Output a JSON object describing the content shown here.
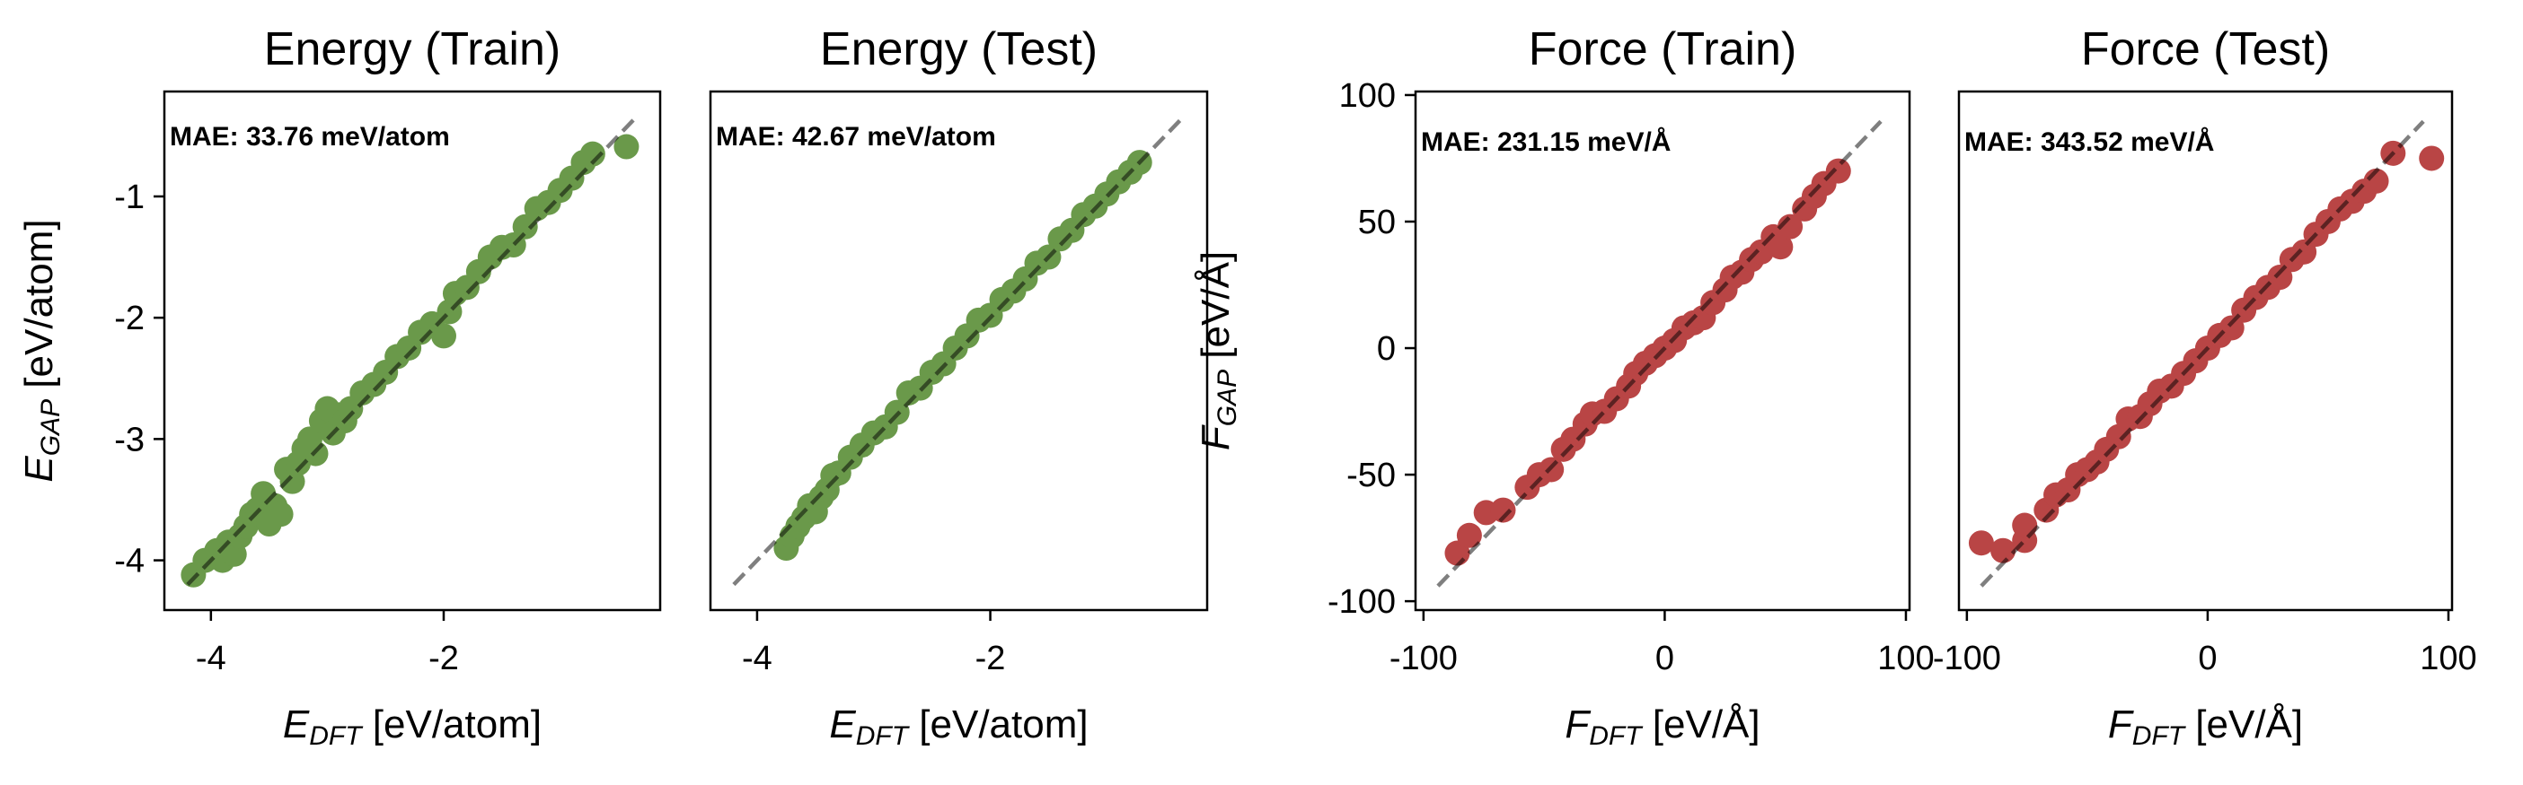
{
  "chart_data": [
    {
      "type": "scatter",
      "title": "Energy (Train)",
      "annotation": "MAE: 33.76 meV/atom",
      "xlabel": {
        "symbol": "E",
        "sub": "DFT",
        "unit": "[eV/atom]"
      },
      "ylabel": {
        "symbol": "E",
        "sub": "GAP",
        "unit": "[eV/atom]"
      },
      "xlim": [
        -4.4,
        -0.14
      ],
      "ylim": [
        -4.41,
        -0.135
      ],
      "xticks": [
        -4,
        -2
      ],
      "yticks": [
        -1,
        -2,
        -3,
        -4
      ],
      "color": "#6a994a",
      "parity_line": [
        -4.2,
        -0.37
      ],
      "points": [
        [
          -4.15,
          -4.12
        ],
        [
          -4.05,
          -4.0
        ],
        [
          -3.95,
          -3.92
        ],
        [
          -3.9,
          -4.0
        ],
        [
          -3.85,
          -3.85
        ],
        [
          -3.8,
          -3.95
        ],
        [
          -3.75,
          -3.8
        ],
        [
          -3.7,
          -3.72
        ],
        [
          -3.65,
          -3.62
        ],
        [
          -3.6,
          -3.58
        ],
        [
          -3.55,
          -3.45
        ],
        [
          -3.5,
          -3.7
        ],
        [
          -3.45,
          -3.55
        ],
        [
          -3.4,
          -3.62
        ],
        [
          -3.35,
          -3.25
        ],
        [
          -3.3,
          -3.35
        ],
        [
          -3.25,
          -3.2
        ],
        [
          -3.2,
          -3.08
        ],
        [
          -3.15,
          -3.0
        ],
        [
          -3.1,
          -3.12
        ],
        [
          -3.05,
          -2.85
        ],
        [
          -3.0,
          -2.75
        ],
        [
          -2.95,
          -2.95
        ],
        [
          -2.9,
          -2.8
        ],
        [
          -2.85,
          -2.85
        ],
        [
          -2.8,
          -2.75
        ],
        [
          -2.7,
          -2.62
        ],
        [
          -2.6,
          -2.55
        ],
        [
          -2.5,
          -2.45
        ],
        [
          -2.4,
          -2.32
        ],
        [
          -2.3,
          -2.25
        ],
        [
          -2.2,
          -2.12
        ],
        [
          -2.1,
          -2.05
        ],
        [
          -2.0,
          -2.15
        ],
        [
          -1.95,
          -1.95
        ],
        [
          -1.9,
          -1.8
        ],
        [
          -1.8,
          -1.75
        ],
        [
          -1.7,
          -1.62
        ],
        [
          -1.6,
          -1.5
        ],
        [
          -1.5,
          -1.42
        ],
        [
          -1.4,
          -1.4
        ],
        [
          -1.3,
          -1.25
        ],
        [
          -1.2,
          -1.1
        ],
        [
          -1.1,
          -1.05
        ],
        [
          -1.0,
          -0.95
        ],
        [
          -0.9,
          -0.85
        ],
        [
          -0.8,
          -0.72
        ],
        [
          -0.72,
          -0.65
        ],
        [
          -0.43,
          -0.59
        ]
      ]
    },
    {
      "type": "scatter",
      "title": "Energy (Test)",
      "annotation": "MAE: 42.67 meV/atom",
      "xlabel": {
        "symbol": "E",
        "sub": "DFT",
        "unit": "[eV/atom]"
      },
      "ylabel": null,
      "xlim": [
        -4.4,
        -0.14
      ],
      "ylim": [
        -4.41,
        -0.135
      ],
      "xticks": [
        -4,
        -2
      ],
      "yticks": [],
      "color": "#6a994a",
      "parity_line": [
        -4.2,
        -0.37
      ],
      "points": [
        [
          -3.75,
          -3.9
        ],
        [
          -3.7,
          -3.8
        ],
        [
          -3.65,
          -3.72
        ],
        [
          -3.6,
          -3.65
        ],
        [
          -3.55,
          -3.55
        ],
        [
          -3.5,
          -3.6
        ],
        [
          -3.45,
          -3.48
        ],
        [
          -3.4,
          -3.42
        ],
        [
          -3.35,
          -3.3
        ],
        [
          -3.3,
          -3.28
        ],
        [
          -3.2,
          -3.15
        ],
        [
          -3.1,
          -3.05
        ],
        [
          -3.0,
          -2.95
        ],
        [
          -2.9,
          -2.9
        ],
        [
          -2.8,
          -2.78
        ],
        [
          -2.7,
          -2.62
        ],
        [
          -2.6,
          -2.58
        ],
        [
          -2.5,
          -2.45
        ],
        [
          -2.4,
          -2.38
        ],
        [
          -2.3,
          -2.25
        ],
        [
          -2.2,
          -2.15
        ],
        [
          -2.1,
          -2.02
        ],
        [
          -2.0,
          -1.98
        ],
        [
          -1.9,
          -1.85
        ],
        [
          -1.8,
          -1.78
        ],
        [
          -1.7,
          -1.68
        ],
        [
          -1.6,
          -1.55
        ],
        [
          -1.5,
          -1.5
        ],
        [
          -1.4,
          -1.35
        ],
        [
          -1.3,
          -1.28
        ],
        [
          -1.2,
          -1.15
        ],
        [
          -1.1,
          -1.08
        ],
        [
          -1.0,
          -0.98
        ],
        [
          -0.9,
          -0.88
        ],
        [
          -0.8,
          -0.8
        ],
        [
          -0.72,
          -0.72
        ]
      ]
    },
    {
      "type": "scatter",
      "title": "Force (Train)",
      "annotation": "MAE: 231.15 meV/Å",
      "xlabel": {
        "symbol": "F",
        "sub": "DFT",
        "unit": "[eV/Å]"
      },
      "ylabel": {
        "symbol": "F",
        "sub": "GAP",
        "unit": "[eV/Å]"
      },
      "xlim": [
        -103.3,
        101.5
      ],
      "ylim": [
        -103.5,
        101.4
      ],
      "xticks": [
        -100,
        0,
        100
      ],
      "yticks": [
        100,
        50,
        0,
        -50,
        -100
      ],
      "color": "#b94545",
      "parity_line": [
        -94,
        89.6
      ],
      "points": [
        [
          -86,
          -81
        ],
        [
          -81,
          -74
        ],
        [
          -74,
          -65
        ],
        [
          -67,
          -64
        ],
        [
          -57,
          -55
        ],
        [
          -52,
          -50
        ],
        [
          -47,
          -48
        ],
        [
          -42,
          -40
        ],
        [
          -38,
          -36
        ],
        [
          -33,
          -30
        ],
        [
          -30,
          -26
        ],
        [
          -25,
          -25
        ],
        [
          -20,
          -20
        ],
        [
          -15,
          -15
        ],
        [
          -12,
          -10
        ],
        [
          -8,
          -6
        ],
        [
          -4,
          -3
        ],
        [
          0,
          0
        ],
        [
          4,
          3
        ],
        [
          8,
          8
        ],
        [
          12,
          10
        ],
        [
          16,
          12
        ],
        [
          20,
          18
        ],
        [
          25,
          23
        ],
        [
          28,
          28
        ],
        [
          32,
          30
        ],
        [
          36,
          35
        ],
        [
          40,
          38
        ],
        [
          45,
          44
        ],
        [
          48,
          40
        ],
        [
          52,
          48
        ],
        [
          58,
          55
        ],
        [
          62,
          60
        ],
        [
          66,
          65
        ],
        [
          72,
          70
        ]
      ]
    },
    {
      "type": "scatter",
      "title": "Force (Test)",
      "annotation": "MAE: 343.52 meV/Å",
      "xlabel": {
        "symbol": "F",
        "sub": "DFT",
        "unit": "[eV/Å]"
      },
      "ylabel": null,
      "xlim": [
        -103.3,
        101.5
      ],
      "ylim": [
        -103.5,
        101.4
      ],
      "xticks": [
        -100,
        0,
        100
      ],
      "yticks": [],
      "color": "#b94545",
      "parity_line": [
        -94,
        89.6
      ],
      "points": [
        [
          -94,
          -77
        ],
        [
          -85,
          -80
        ],
        [
          -76,
          -76
        ],
        [
          -76,
          -70
        ],
        [
          -67,
          -64
        ],
        [
          -63,
          -58
        ],
        [
          -58,
          -56
        ],
        [
          -54,
          -50
        ],
        [
          -50,
          -48
        ],
        [
          -46,
          -45
        ],
        [
          -42,
          -40
        ],
        [
          -37,
          -35
        ],
        [
          -33,
          -28
        ],
        [
          -28,
          -27
        ],
        [
          -24,
          -22
        ],
        [
          -20,
          -17
        ],
        [
          -15,
          -15
        ],
        [
          -10,
          -10
        ],
        [
          -5,
          -5
        ],
        [
          0,
          0
        ],
        [
          5,
          5
        ],
        [
          10,
          8
        ],
        [
          15,
          15
        ],
        [
          20,
          20
        ],
        [
          25,
          24
        ],
        [
          30,
          28
        ],
        [
          35,
          35
        ],
        [
          40,
          38
        ],
        [
          45,
          45
        ],
        [
          50,
          50
        ],
        [
          55,
          55
        ],
        [
          60,
          58
        ],
        [
          65,
          62
        ],
        [
          70,
          66
        ],
        [
          77,
          77
        ],
        [
          93,
          75
        ]
      ]
    }
  ]
}
